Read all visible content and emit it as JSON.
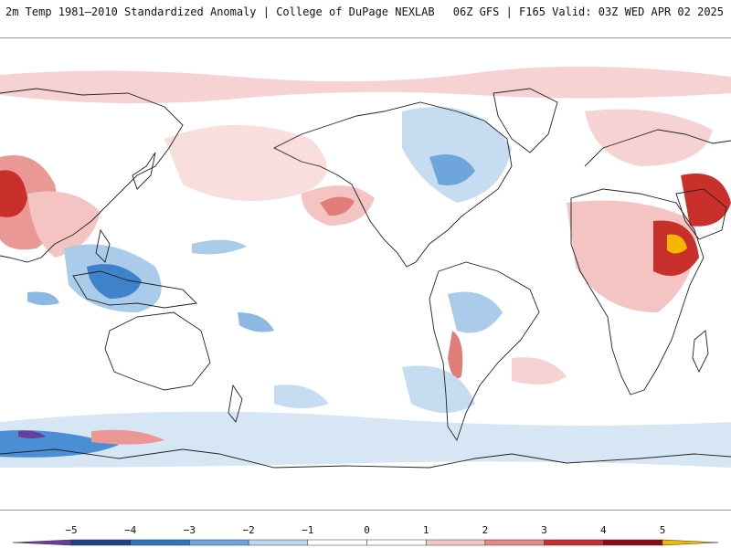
{
  "header": {
    "title": "2m Temp 1981–2010 Standardized Anomaly | College of DuPage NEXLAB",
    "run_info": "06Z GFS | F165 Valid: 03Z WED APR 02 2025"
  },
  "legend": {
    "ticks": [
      "−5",
      "−4",
      "−3",
      "−2",
      "−1",
      "0",
      "1",
      "2",
      "3",
      "4",
      "5"
    ],
    "colors": [
      "#6a3d9a",
      "#1f3f86",
      "#2f74c0",
      "#6ea6dc",
      "#bcd6ee",
      "#ffffff",
      "#ffffff",
      "#f4c7c4",
      "#e58a86",
      "#cc2e2e",
      "#8c0a12",
      "#f5b800"
    ]
  },
  "map": {
    "projection": "equirectangular",
    "center_longitude": -150,
    "warm_color": "#f0a9a9",
    "cool_color": "#aacbe9",
    "strong_warm_color": "#c9302c",
    "strong_cool_color": "#2f6fc2"
  }
}
